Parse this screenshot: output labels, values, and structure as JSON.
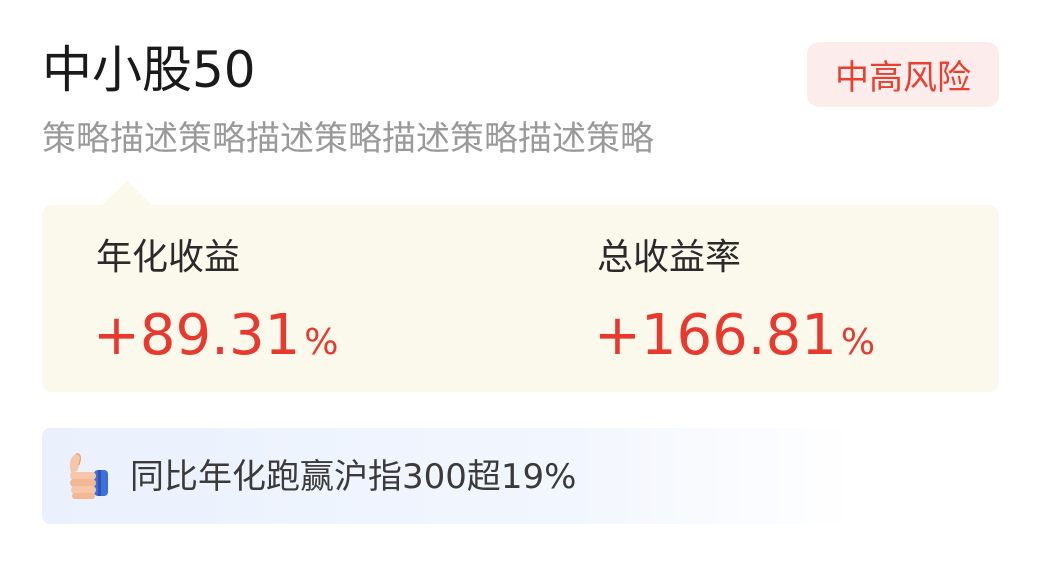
{
  "fund": {
    "name": "中小股50",
    "risk_level": "中高风险",
    "description": "策略描述策略描述策略描述策略描述策略"
  },
  "metrics": {
    "annualized": {
      "label": "年化收益",
      "value": "+89.31",
      "unit": "%"
    },
    "total_return": {
      "label": "总收益率",
      "value": "+166.81",
      "unit": "%"
    }
  },
  "comparison": {
    "icon": "thumbs-up-icon",
    "text": "同比年化跑赢沪指300超19%"
  },
  "colors": {
    "gain_red": "#e8392e",
    "risk_badge_bg": "#fdecec",
    "metrics_bg": "#fbf8ec",
    "banner_bg": "#eaf1fd"
  }
}
